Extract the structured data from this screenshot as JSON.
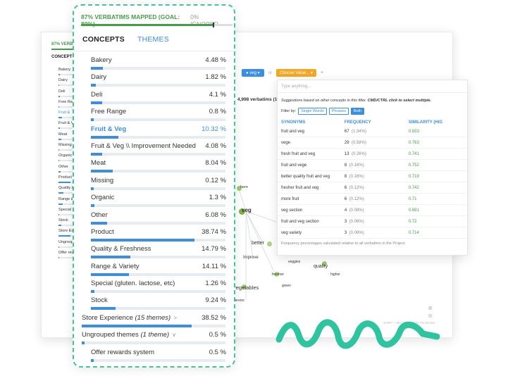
{
  "progress": {
    "mapped_label": "87% VERBATIMS MAPPED (GOAL: 80%)",
    "ignored_label": "0% IGNORED",
    "mapped_pct": 87,
    "goal_pct": 80
  },
  "tabs": {
    "concepts": "CONCEPTS",
    "themes": "THEMES"
  },
  "themes": [
    {
      "label": "Bakery",
      "value": "4.48 %",
      "pct": 4.48
    },
    {
      "label": "Dairy",
      "value": "1.82 %",
      "pct": 1.82
    },
    {
      "label": "Deli",
      "value": "4.1 %",
      "pct": 4.1
    },
    {
      "label": "Free Range",
      "value": "0.8 %",
      "pct": 0.8
    },
    {
      "label": "Fruit & Veg",
      "value": "10.32 %",
      "pct": 10.32
    },
    {
      "label": "Fruit & Veg \\\\ Improvement Needed",
      "value": "4.08 %",
      "pct": 4.08
    },
    {
      "label": "Meat",
      "value": "8.04 %",
      "pct": 8.04
    },
    {
      "label": "Missing",
      "value": "0.12 %",
      "pct": 0.12
    },
    {
      "label": "Organic",
      "value": "1.3 %",
      "pct": 1.3
    },
    {
      "label": "Other",
      "value": "6.08 %",
      "pct": 6.08
    },
    {
      "label": "Product",
      "value": "38.74 %",
      "pct": 38.74
    },
    {
      "label": "Quality & Freshness",
      "value": "14.79 %",
      "pct": 14.79
    },
    {
      "label": "Range & Variety",
      "value": "14.11 %",
      "pct": 14.11
    },
    {
      "label": "Special (gluten. lactose, etc)",
      "value": "1.26 %",
      "pct": 1.26
    },
    {
      "label": "Stock",
      "value": "9.24 %",
      "pct": 9.24
    }
  ],
  "groups": {
    "store_experience": {
      "label": "Store Experience",
      "count": "(15 themes)",
      "value": "38.52 %",
      "pct": 38.52
    },
    "ungrouped": {
      "label": "Ungrouped themes",
      "count": "(1 theme)",
      "value": "0.5 %",
      "pct": 0.5
    },
    "offer": {
      "label": "Offer rewards system",
      "value": "0.5 %",
      "pct": 0.5
    }
  },
  "background": {
    "mini_progress": "87% VERBATI",
    "mini_tab": "CONCEPTS",
    "mini_items": [
      "Bakery",
      "Dairy",
      "Deli",
      "Free Ran",
      "Fruit &",
      "Fruit & V",
      "Meat",
      "Missing",
      "Organic",
      "Other",
      "Product",
      "Quality &",
      "Range &",
      "Special (",
      "Stock",
      "Store Exper",
      "Ungrouped",
      "Offer rev"
    ],
    "filter_chip": "veg",
    "filter_or": "or",
    "filter_choose": "Choose Value...",
    "filter_x": "×",
    "verbatims": "4,998 verbatims (1",
    "graph_nodes": [
      "here",
      "veg",
      "better",
      "Improve",
      "fresher",
      "veggies",
      "quality",
      "higher",
      "vegetables",
      "green",
      "service"
    ],
    "zoom_hint": "SHIFT + MOUSEWHEEL TO ZOOM",
    "zoom_in": "⊕",
    "zoom_out": "⊖"
  },
  "synonyms_popup": {
    "input_placeholder": "Type anything...",
    "suggestion_text": "Suggestions based on other concepts in this filter.",
    "suggestion_bold": "CMD/CTRL click to select multiple.",
    "filter_by": "Filter by:",
    "filters": [
      "Single Words",
      "Phrases",
      "Both"
    ],
    "col_synonyms": "SYNONYMS",
    "col_frequency": "FREQUENCY",
    "col_similarity": "SIMILARITY (HIG",
    "rows": [
      {
        "syn": "fruit and veg",
        "freq": "67",
        "pct": "(1.34%)",
        "sim": "0.833"
      },
      {
        "syn": "vege",
        "freq": "29",
        "pct": "(0.58%)",
        "sim": "0.763"
      },
      {
        "syn": "fresh fruit and veg",
        "freq": "13",
        "pct": "(0.26%)",
        "sim": "0.741"
      },
      {
        "syn": "fruit and vege",
        "freq": "8",
        "pct": "(0.16%)",
        "sim": "0.752"
      },
      {
        "syn": "better quality fruit and veg",
        "freq": "8",
        "pct": "(0.16%)",
        "sim": "0.719"
      },
      {
        "syn": "fresher fruit and veg",
        "freq": "6",
        "pct": "(0.12%)",
        "sim": "0.742"
      },
      {
        "syn": "more fruit",
        "freq": "6",
        "pct": "(0.12%)",
        "sim": "0.71"
      },
      {
        "syn": "veg section",
        "freq": "4",
        "pct": "(0.08%)",
        "sim": "0.691"
      },
      {
        "syn": "fruit and veg section",
        "freq": "3",
        "pct": "(0.06%)",
        "sim": "0.72"
      },
      {
        "syn": "veg variety",
        "freq": "3",
        "pct": "(0.06%)",
        "sim": "0.714"
      }
    ],
    "footer": "Frequency percentages calculated relative to all verbatims in the Project."
  },
  "colors": {
    "accent": "#3a8ee6",
    "green": "#43a047",
    "teal": "#2ec4a0",
    "dashed_border": "#3fc79a"
  }
}
